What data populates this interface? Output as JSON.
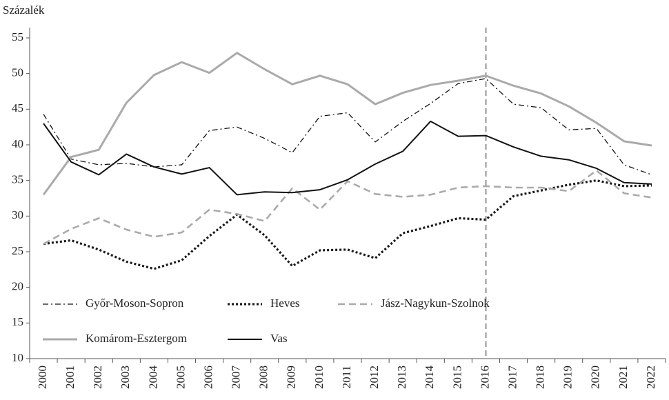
{
  "chart_data": {
    "type": "line",
    "y_label": "Százalék",
    "categories": [
      "2000",
      "2001",
      "2002",
      "2003",
      "2004",
      "2005",
      "2006",
      "2007",
      "2008",
      "2009",
      "2010",
      "2011",
      "2012",
      "2013",
      "2014",
      "2015",
      "2016",
      "2017",
      "2018",
      "2019",
      "2020",
      "2021",
      "2022"
    ],
    "series": [
      {
        "name": "Győr-Moson-Sopron",
        "color": "#111111",
        "style": "dashdot",
        "width": 1.3,
        "values": [
          44.3,
          38,
          37.2,
          37.4,
          36.9,
          37.2,
          42,
          42.5,
          40.9,
          38.9,
          44,
          44.5,
          40.4,
          43.3,
          45.8,
          48.6,
          49.3,
          45.7,
          45.2,
          42.1,
          42.3,
          37.2,
          35.8
        ]
      },
      {
        "name": "Heves",
        "color": "#1a1a1a",
        "style": "dotted",
        "width": 3.2,
        "values": [
          26.1,
          26.6,
          25.3,
          23.6,
          22.6,
          23.8,
          27.2,
          30.2,
          27.3,
          23,
          25.2,
          25.3,
          24.1,
          27.6,
          28.6,
          29.7,
          29.5,
          32.8,
          33.6,
          34.4,
          35,
          34.2,
          34.3
        ]
      },
      {
        "name": "Jász-Nagykun-Szolnok",
        "color": "#aaaaaa",
        "style": "dashed",
        "width": 2.6,
        "values": [
          26.1,
          28.2,
          29.7,
          28.1,
          27.1,
          27.7,
          30.9,
          30.3,
          29.3,
          33.9,
          30.9,
          34.9,
          33.1,
          32.7,
          33,
          34,
          34.2,
          34,
          34,
          33.5,
          36.4,
          33.2,
          32.6
        ]
      },
      {
        "name": "Komárom-Esztergom",
        "color": "#aaaaaa",
        "style": "solid",
        "width": 3,
        "values": [
          33,
          38.3,
          39.3,
          45.9,
          49.8,
          51.6,
          50.1,
          52.9,
          50.6,
          48.5,
          49.7,
          48.5,
          45.7,
          47.3,
          48.4,
          49,
          49.7,
          48.3,
          47.2,
          45.4,
          43.1,
          40.5,
          39.9
        ]
      },
      {
        "name": "Vas",
        "color": "#111111",
        "style": "solid",
        "width": 2,
        "values": [
          43,
          37.6,
          35.8,
          38.7,
          36.9,
          35.9,
          36.8,
          33,
          33.4,
          33.3,
          33.7,
          35.1,
          37.3,
          39.1,
          43.3,
          41.2,
          41.3,
          39.7,
          38.4,
          37.9,
          36.7,
          34.7,
          34.5
        ]
      }
    ],
    "vline": "2016",
    "vline_color": "#aaaaaa",
    "ylim": [
      10,
      55
    ],
    "yticks": [
      10,
      15,
      20,
      25,
      30,
      35,
      40,
      45,
      50,
      55
    ],
    "legend": "bottom-left",
    "legend_columns": 3
  }
}
